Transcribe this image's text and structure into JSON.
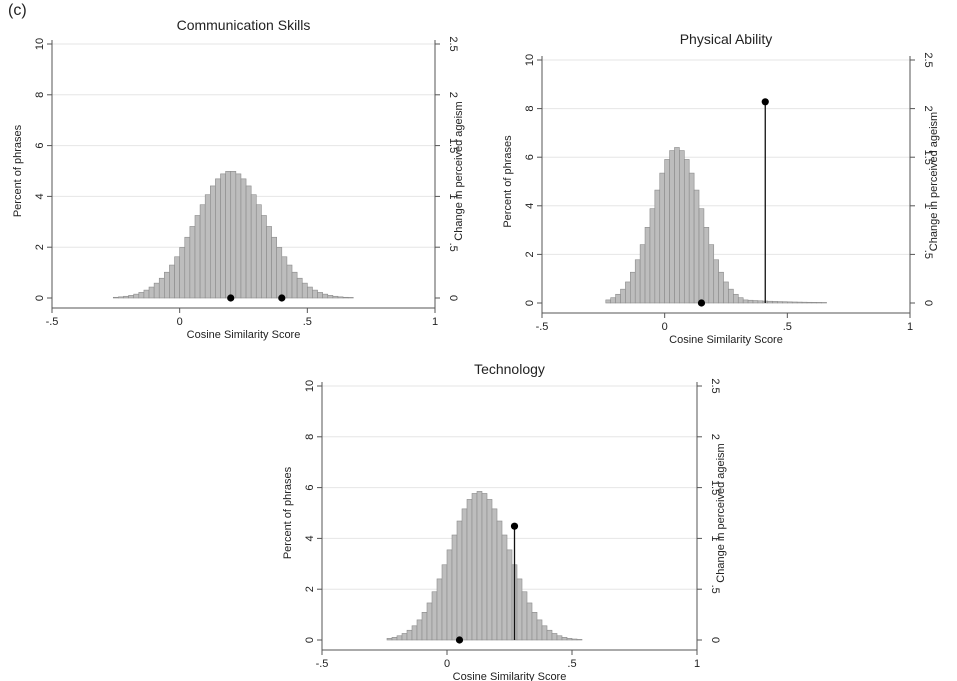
{
  "figure": {
    "panel_label": "(c)"
  },
  "chart_data": [
    {
      "type": "bar",
      "title": "Communication Skills",
      "xlabel": "Cosine Similarity Score",
      "ylabel": "Percent of phrases",
      "y2label": "Change in perceived ageism",
      "xlim": [
        -0.5,
        1
      ],
      "ylim": [
        0,
        10
      ],
      "y2lim": [
        0,
        2.5
      ],
      "xticks": [
        -0.5,
        0,
        0.5,
        1
      ],
      "xticklabels": [
        "-.5",
        "0",
        ".5",
        "1"
      ],
      "yticks": [
        0,
        2,
        4,
        6,
        8,
        10
      ],
      "yticklabels": [
        "0",
        "2",
        "4",
        "6",
        "8",
        "10"
      ],
      "y2ticks": [
        0,
        0.5,
        1,
        1.5,
        2,
        2.5
      ],
      "y2ticklabels": [
        "0",
        ".5",
        "1",
        "1.5",
        "2",
        "2.5"
      ],
      "grid": true,
      "histogram": {
        "binwidth": 0.02,
        "mean": 0.2,
        "sd": 0.14,
        "peak": 5.0,
        "range": [
          -0.26,
          0.82
        ],
        "tail": 0.3
      },
      "markers": [
        {
          "x": 0.2,
          "y2": 0.0,
          "stem": false
        },
        {
          "x": 0.4,
          "y2": 0.0,
          "stem": false
        }
      ]
    },
    {
      "type": "bar",
      "title": "Physical Ability",
      "xlabel": "Cosine Similarity Score",
      "ylabel": "Percent of phrases",
      "y2label": "Change in perceived ageism",
      "xlim": [
        -0.5,
        1
      ],
      "ylim": [
        0,
        10
      ],
      "y2lim": [
        0,
        2.5
      ],
      "xticks": [
        -0.5,
        0,
        0.5,
        1
      ],
      "xticklabels": [
        "-.5",
        "0",
        ".5",
        "1"
      ],
      "yticks": [
        0,
        2,
        4,
        6,
        8,
        10
      ],
      "yticklabels": [
        "0",
        "2",
        "4",
        "6",
        "8",
        "10"
      ],
      "y2ticks": [
        0,
        0.5,
        1,
        1.5,
        2,
        2.5
      ],
      "y2ticklabels": [
        "0",
        ".5",
        "1",
        "1.5",
        "2",
        "2.5"
      ],
      "grid": true,
      "histogram": {
        "binwidth": 0.02,
        "mean": 0.05,
        "sd": 0.1,
        "peak": 6.4,
        "range": [
          -0.24,
          0.8
        ],
        "tail": 0.6
      },
      "markers": [
        {
          "x": 0.15,
          "y2": 0.0,
          "stem": false
        },
        {
          "x": 0.41,
          "y2": 2.07,
          "stem": true
        }
      ]
    },
    {
      "type": "bar",
      "title": "Technology",
      "xlabel": "Cosine Similarity Score",
      "ylabel": "Percent of phrases",
      "y2label": "Change in perceived ageism",
      "xlim": [
        -0.5,
        1
      ],
      "ylim": [
        0,
        10
      ],
      "y2lim": [
        0,
        2.5
      ],
      "xticks": [
        -0.5,
        0,
        0.5,
        1
      ],
      "xticklabels": [
        "-.5",
        "0",
        ".5",
        "1"
      ],
      "yticks": [
        0,
        2,
        4,
        6,
        8,
        10
      ],
      "yticklabels": [
        "0",
        "2",
        "4",
        "6",
        "8",
        "10"
      ],
      "y2ticks": [
        0,
        0.5,
        1,
        1.5,
        2,
        2.5
      ],
      "y2ticklabels": [
        "0",
        ".5",
        "1",
        "1.5",
        "2",
        "2.5"
      ],
      "grid": true,
      "histogram": {
        "binwidth": 0.02,
        "mean": 0.13,
        "sd": 0.12,
        "peak": 5.85,
        "range": [
          -0.24,
          0.66
        ],
        "tail": 0.0
      },
      "markers": [
        {
          "x": 0.05,
          "y2": 0.0,
          "stem": false
        },
        {
          "x": 0.27,
          "y2": 1.12,
          "stem": true
        }
      ]
    }
  ]
}
